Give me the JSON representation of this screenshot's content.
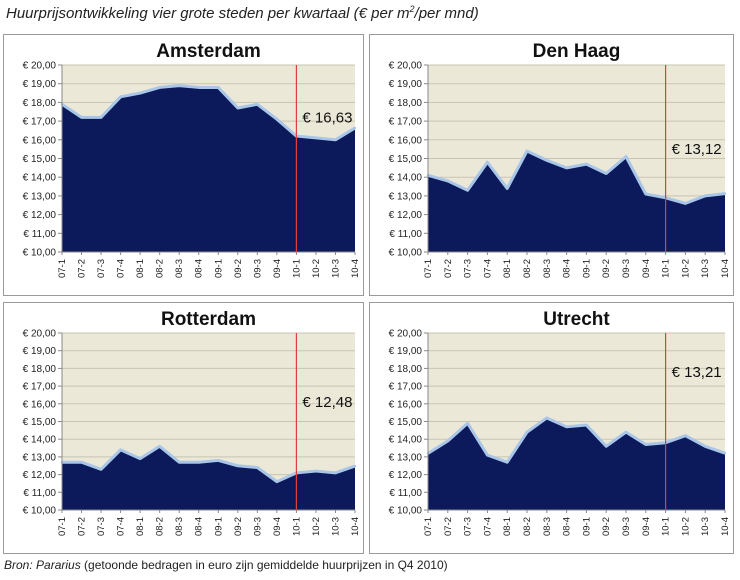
{
  "title": {
    "main": "Huurprijsontwikkeling  vier grote steden per kwartaal (€ per m",
    "sup": "2",
    "tail": "/per mnd)"
  },
  "footnote": {
    "source": "Bron: Pararius",
    "note": " (getoonde bedragen in euro zijn gemiddelde huurprijzen in Q4 2010)"
  },
  "colors": {
    "area_fill": "#0c1a5c",
    "line": "#a9c6e8",
    "plot_bg": "#ece8d8",
    "gridline": "#c9c4b2",
    "marker_line": "#d94040"
  },
  "chart_data": [
    {
      "type": "area",
      "title": "Amsterdam",
      "categories": [
        "07-1",
        "07-2",
        "07-3",
        "07-4",
        "08-1",
        "08-2",
        "08-3",
        "08-4",
        "09-1",
        "09-2",
        "09-3",
        "09-4",
        "10-1",
        "10-2",
        "10-3",
        "10-4"
      ],
      "values": [
        17.9,
        17.2,
        17.2,
        18.3,
        18.5,
        18.8,
        18.9,
        18.8,
        18.8,
        17.7,
        17.9,
        17.1,
        16.2,
        16.1,
        16.0,
        16.63
      ],
      "ylim": [
        10,
        20
      ],
      "yticks": [
        "€ 10,00",
        "€ 11,00",
        "€ 12,00",
        "€ 13,00",
        "€ 14,00",
        "€ 15,00",
        "€ 16,00",
        "€ 17,00",
        "€ 18,00",
        "€ 19,00",
        "€ 20,00"
      ],
      "marker_category": "10-1",
      "annotation": "€ 16,63",
      "annotation_y": 17.2,
      "grid": true
    },
    {
      "type": "area",
      "title": "Den Haag",
      "categories": [
        "07-1",
        "07-2",
        "07-3",
        "07-4",
        "08-1",
        "08-2",
        "08-3",
        "08-4",
        "09-1",
        "09-2",
        "09-3",
        "09-4",
        "10-1",
        "10-2",
        "10-3",
        "10-4"
      ],
      "values": [
        14.1,
        13.8,
        13.3,
        14.8,
        13.4,
        15.4,
        14.9,
        14.5,
        14.7,
        14.2,
        15.1,
        13.1,
        12.9,
        12.6,
        13.0,
        13.12
      ],
      "ylim": [
        10,
        20
      ],
      "yticks": [
        "€ 10,00",
        "€ 11,00",
        "€ 12,00",
        "€ 13,00",
        "€ 14,00",
        "€ 15,00",
        "€ 16,00",
        "€ 17,00",
        "€ 18,00",
        "€ 19,00",
        "€ 20,00"
      ],
      "marker_category": "10-1",
      "annotation": "€ 13,12",
      "annotation_y": 15.5,
      "grid": true
    },
    {
      "type": "area",
      "title": "Rotterdam",
      "categories": [
        "07-1",
        "07-2",
        "07-3",
        "07-4",
        "08-1",
        "08-2",
        "08-3",
        "08-4",
        "09-1",
        "09-2",
        "09-3",
        "09-4",
        "10-1",
        "10-2",
        "10-3",
        "10-4"
      ],
      "values": [
        12.7,
        12.7,
        12.3,
        13.4,
        12.9,
        13.6,
        12.7,
        12.7,
        12.8,
        12.5,
        12.4,
        11.6,
        12.1,
        12.2,
        12.1,
        12.48
      ],
      "ylim": [
        10,
        20
      ],
      "yticks": [
        "€ 10,00",
        "€ 11,00",
        "€ 12,00",
        "€ 13,00",
        "€ 14,00",
        "€ 15,00",
        "€ 16,00",
        "€ 17,00",
        "€ 18,00",
        "€ 19,00",
        "€ 20,00"
      ],
      "marker_category": "10-1",
      "annotation": "€ 12,48",
      "annotation_y": 16.1,
      "grid": true
    },
    {
      "type": "area",
      "title": "Utrecht",
      "categories": [
        "07-1",
        "07-2",
        "07-3",
        "07-4",
        "08-1",
        "08-2",
        "08-3",
        "08-4",
        "09-1",
        "09-2",
        "09-3",
        "09-4",
        "10-1",
        "10-2",
        "10-3",
        "10-4"
      ],
      "values": [
        13.2,
        13.9,
        14.9,
        13.1,
        12.7,
        14.4,
        15.2,
        14.7,
        14.8,
        13.6,
        14.4,
        13.7,
        13.8,
        14.2,
        13.6,
        13.21
      ],
      "ylim": [
        10,
        20
      ],
      "yticks": [
        "€ 10,00",
        "€ 11,00",
        "€ 12,00",
        "€ 13,00",
        "€ 14,00",
        "€ 15,00",
        "€ 16,00",
        "€ 17,00",
        "€ 18,00",
        "€ 19,00",
        "€ 20,00"
      ],
      "marker_category": "10-1",
      "annotation": "€ 13,21",
      "annotation_y": 17.8,
      "grid": true
    }
  ]
}
